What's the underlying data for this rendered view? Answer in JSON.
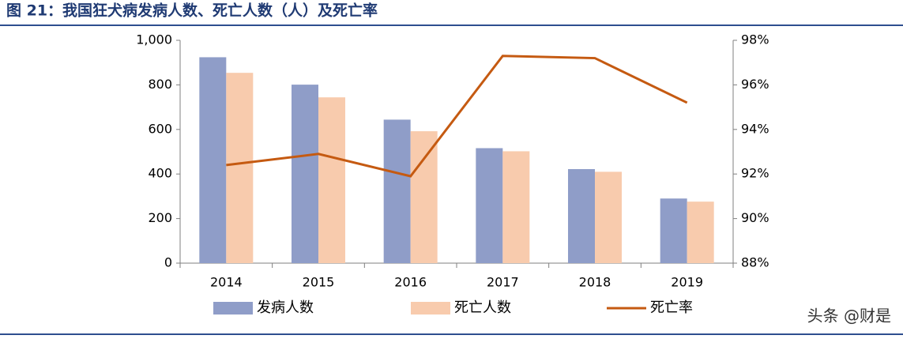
{
  "chart_data": {
    "type": "bar",
    "title": "图 21：我国狂犬病发病人数、死亡人数（人）及死亡率",
    "watermark": "头条 @财是",
    "categories": [
      "2014",
      "2015",
      "2016",
      "2017",
      "2018",
      "2019"
    ],
    "series": [
      {
        "name": "发病人数",
        "color": "#8f9dc8",
        "type": "bar",
        "values": [
          924,
          801,
          644,
          516,
          422,
          290
        ]
      },
      {
        "name": "死亡人数",
        "color": "#f8cbad",
        "type": "bar",
        "values": [
          854,
          744,
          592,
          502,
          410,
          276
        ]
      },
      {
        "name": "死亡率",
        "color": "#c55a11",
        "type": "line",
        "axis": "y2",
        "values": [
          92.4,
          92.9,
          91.9,
          97.3,
          97.2,
          95.2
        ]
      }
    ],
    "ylim": [
      0,
      1000
    ],
    "yticks": [
      0,
      200,
      400,
      600,
      800,
      {
        "value": 1000,
        "label": "1,000"
      }
    ],
    "y2lim": [
      88,
      98
    ],
    "y2ticks": [
      {
        "value": 88,
        "label": "88%"
      },
      {
        "value": 90,
        "label": "90%"
      },
      {
        "value": 92,
        "label": "92%"
      },
      {
        "value": 94,
        "label": "94%"
      },
      {
        "value": 96,
        "label": "96%"
      },
      {
        "value": 98,
        "label": "98%"
      }
    ],
    "grid": false,
    "legend": "bottom"
  }
}
